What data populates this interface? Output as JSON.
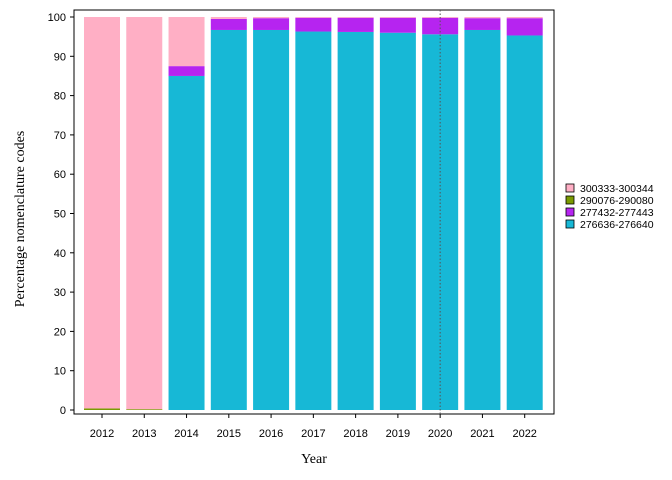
{
  "chart_data": {
    "type": "bar",
    "stacked": true,
    "title": "",
    "xlabel": "Year",
    "ylabel": "Percentage nomenclature codes",
    "ylim": [
      0,
      100
    ],
    "yticks": [
      0,
      10,
      20,
      30,
      40,
      50,
      60,
      70,
      80,
      90,
      100
    ],
    "grid": false,
    "legend_position": "right",
    "reference_line": {
      "x": "2020",
      "style": "dotted"
    },
    "categories": [
      "2012",
      "2013",
      "2014",
      "2015",
      "2016",
      "2017",
      "2018",
      "2019",
      "2020",
      "2021",
      "2022"
    ],
    "series": [
      {
        "name": "276636-276640",
        "color": "#17B8D6",
        "values": [
          0,
          0,
          85.0,
          96.7,
          96.7,
          96.3,
          96.2,
          96.0,
          95.6,
          96.7,
          95.3
        ]
      },
      {
        "name": "277432-277443",
        "color": "#B624F0",
        "values": [
          0,
          0,
          2.5,
          2.8,
          3.0,
          3.5,
          3.6,
          3.8,
          4.2,
          3.0,
          4.4
        ]
      },
      {
        "name": "290076-290080",
        "color": "#7A9A01",
        "values": [
          0.4,
          0.2,
          0,
          0,
          0,
          0,
          0,
          0,
          0,
          0,
          0
        ]
      },
      {
        "name": "300333-300344",
        "color": "#FFAFC5",
        "values": [
          99.6,
          99.8,
          12.5,
          0.5,
          0.3,
          0.2,
          0.2,
          0.2,
          0.2,
          0.3,
          0.3
        ]
      }
    ],
    "legend_order": [
      "300333-300344",
      "290076-290080",
      "277432-277443",
      "276636-276640"
    ]
  }
}
